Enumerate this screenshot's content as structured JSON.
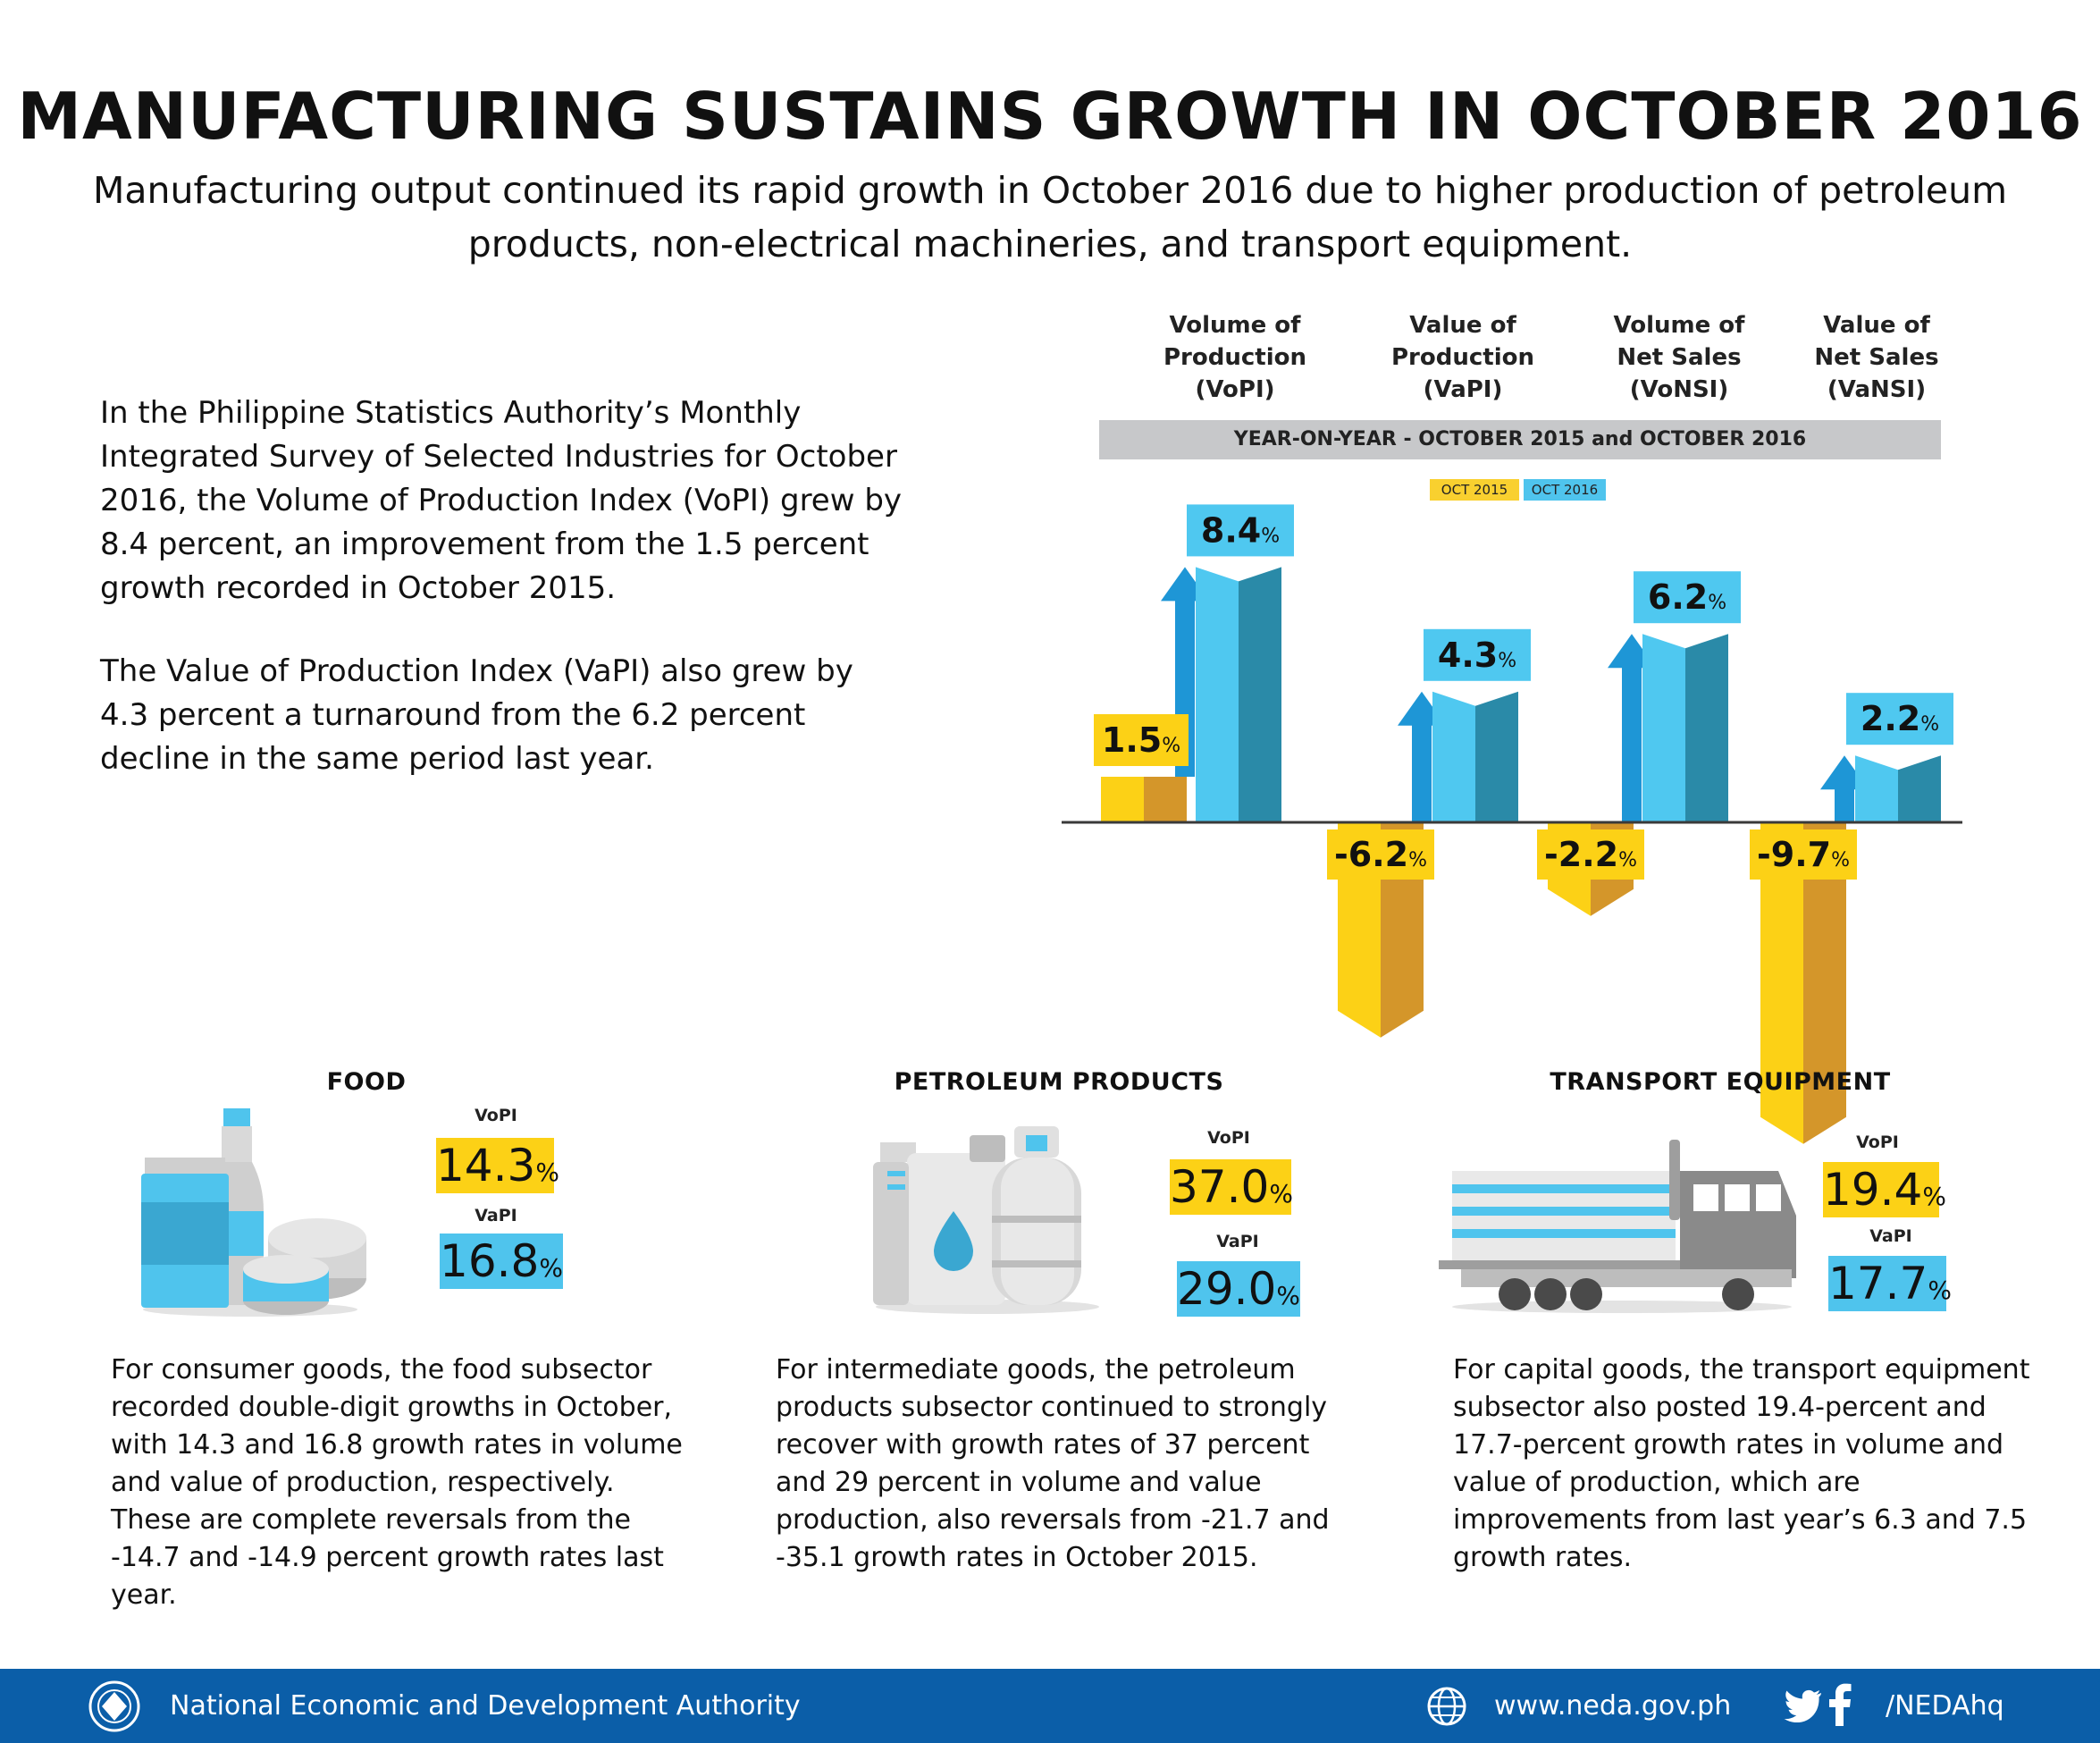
{
  "title": "MANUFACTURING SUSTAINS GROWTH IN OCTOBER 2016",
  "subtitle": "Manufacturing output continued its rapid growth in October 2016 due to higher production of petroleum products, non-electrical machineries, and transport equipment.",
  "intro": {
    "p1": "In the Philippine Statistics Authority’s Monthly Integrated Survey of Selected Industries for October 2016, the Volume of Production Index (VoPI) grew by 8.4 percent, an improvement from the 1.5 percent growth recorded in October 2015.",
    "p2": "The Value of Production Index (VaPI) also grew by 4.3 percent a turnaround from the 6.2 percent decline in the same period last year."
  },
  "chart_data": {
    "type": "bar",
    "banner": "YEAR-ON-YEAR - OCTOBER 2015 and OCTOBER 2016",
    "categories": [
      "Volume of Production (VoPI)",
      "Value of Production (VaPI)",
      "Volume of Net Sales (VoNSI)",
      "Value of Net Sales (VaNSI)"
    ],
    "category_lines": [
      [
        "Volume of",
        "Production",
        "(VoPI)"
      ],
      [
        "Value of",
        "Production",
        "(VaPI)"
      ],
      [
        "Volume of",
        "Net Sales",
        "(VoNSI)"
      ],
      [
        "Value of",
        "Net Sales",
        "(VaNSI)"
      ]
    ],
    "series": [
      {
        "name": "OCT 2015",
        "values": [
          1.5,
          -6.2,
          -2.2,
          -9.7
        ],
        "labels": [
          "1.5",
          "-6.2",
          "-2.2",
          "-9.7"
        ],
        "color": "#fcd116",
        "side_color": "#d4962a"
      },
      {
        "name": "OCT 2016",
        "values": [
          8.4,
          4.3,
          6.2,
          2.2
        ],
        "labels": [
          "8.4",
          "4.3",
          "6.2",
          "2.2"
        ],
        "color": "#4fc8f0",
        "side_color": "#2a8aa8"
      }
    ],
    "unit": "%",
    "legend": "top-center",
    "arrow_color": "#1e96d6",
    "grid": false
  },
  "categories_section": [
    {
      "title": "FOOD",
      "vopi_label": "VoPI",
      "vopi_value": "14.3",
      "vapi_label": "VaPI",
      "vapi_value": "16.8",
      "pct": "%",
      "description": "For consumer goods, the food subsector recorded double-digit growths in October, with 14.3 and 16.8 growth rates in volume and value of production, respectively. These are complete reversals from the -14.7 and -14.9 percent growth rates last year.",
      "illustration_icon": "food-containers-icon"
    },
    {
      "title": "PETROLEUM PRODUCTS",
      "vopi_label": "VoPI",
      "vopi_value": "37.0",
      "vapi_label": "VaPI",
      "vapi_value": "29.0",
      "pct": "%",
      "description": "For intermediate goods, the petroleum products subsector continued to strongly recover with growth rates of 37 percent and 29 percent in volume and value production, also reversals from -21.7 and -35.1 growth rates in October 2015.",
      "illustration_icon": "oil-jug-and-gas-tank-icon"
    },
    {
      "title": "TRANSPORT EQUIPMENT",
      "vopi_label": "VoPI",
      "vopi_value": "19.4",
      "vapi_label": "VaPI",
      "vapi_value": "17.7",
      "pct": "%",
      "description": "For capital goods, the transport equipment subsector also posted 19.4-percent and 17.7-percent growth rates in volume and value of production, which are improvements from last year’s 6.3 and 7.5 growth rates.",
      "illustration_icon": "truck-icon"
    }
  ],
  "footer": {
    "org": "National Economic and Development Authority",
    "website": "www.neda.gov.ph",
    "handle": "/NEDAhq",
    "bg_color": "#0b5ea8",
    "icons": [
      "neda-seal-icon",
      "globe-icon",
      "twitter-icon",
      "facebook-icon"
    ]
  }
}
